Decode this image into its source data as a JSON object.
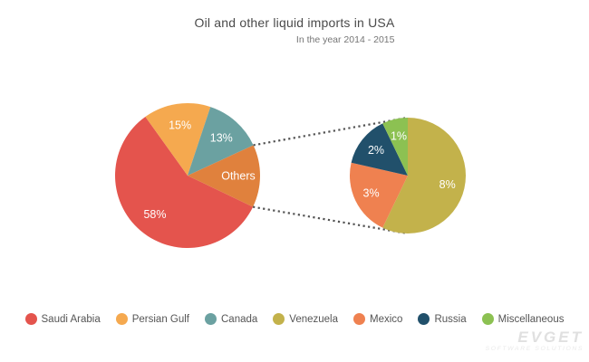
{
  "header": {
    "title": "Oil and other liquid imports in USA",
    "subtitle": "In the year 2014 - 2015"
  },
  "watermark": {
    "brand": "EVGET",
    "tagline": "SOFTWARE SOLUTIONS"
  },
  "chart_data": {
    "type": "pie",
    "variant": "pie-of-pie",
    "title": "Oil and other liquid imports in USA",
    "subtitle": "In the year 2014 - 2015",
    "unit": "%",
    "legend_position": "bottom",
    "connector_style": "dotted",
    "main_pie": {
      "start_angle_deg": 115.6,
      "slices": [
        {
          "label": "Saudi Arabia",
          "value": 58,
          "display": "58%",
          "color": "#e4544d"
        },
        {
          "label": "Persian Gulf",
          "value": 15,
          "display": "15%",
          "color": "#f5a94f"
        },
        {
          "label": "Canada",
          "value": 13,
          "display": "13%",
          "color": "#6ba1a1"
        },
        {
          "label": "Others",
          "value": 14,
          "display": "Others",
          "color": "#e0813d"
        }
      ]
    },
    "detail_pie": {
      "source_slice": "Others",
      "start_angle_deg": 0,
      "slices": [
        {
          "label": "Venezuela",
          "value": 8,
          "display": "8%",
          "color": "#c3b24b"
        },
        {
          "label": "Mexico",
          "value": 3,
          "display": "3%",
          "color": "#ef8150"
        },
        {
          "label": "Russia",
          "value": 2,
          "display": "2%",
          "color": "#21506b"
        },
        {
          "label": "Miscellaneous",
          "value": 1,
          "display": "1%",
          "color": "#8cc152"
        }
      ]
    },
    "legend": [
      {
        "label": "Saudi Arabia",
        "color": "#e4544d"
      },
      {
        "label": "Persian Gulf",
        "color": "#f5a94f"
      },
      {
        "label": "Canada",
        "color": "#6ba1a1"
      },
      {
        "label": "Venezuela",
        "color": "#c3b24b"
      },
      {
        "label": "Mexico",
        "color": "#ef8150"
      },
      {
        "label": "Russia",
        "color": "#21506b"
      },
      {
        "label": "Miscellaneous",
        "color": "#8cc152"
      }
    ]
  }
}
